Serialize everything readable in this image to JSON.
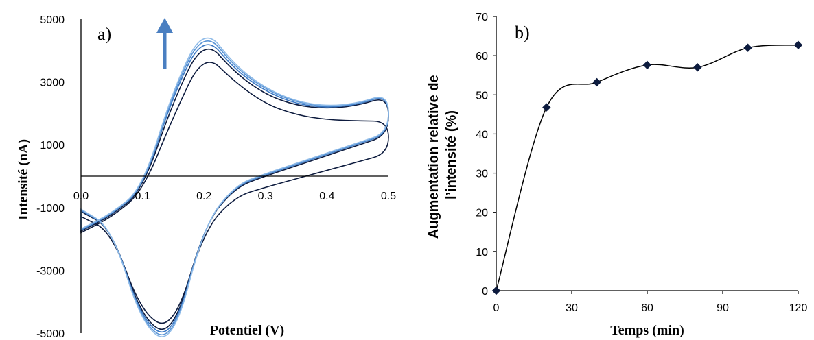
{
  "chart_data": [
    {
      "type": "line",
      "panel_label": "a)",
      "xlabel": "Potentiel (V)",
      "ylabel": "Intensité (nA)",
      "xlim": [
        0.0,
        0.5
      ],
      "ylim": [
        -5000,
        5000
      ],
      "x_ticks": [
        "0.0",
        "0.1",
        "0.2",
        "0.3",
        "0.4",
        "0.5"
      ],
      "y_ticks": [
        "5000",
        "3000",
        "1000",
        "-1000",
        "-3000",
        "-5000"
      ],
      "annotation": "upward arrow indicating increasing current across successive scans",
      "series": [
        {
          "color": "#0d1b3e",
          "x": [
            0.0,
            0.05,
            0.1,
            0.15,
            0.2,
            0.25,
            0.3,
            0.35,
            0.4,
            0.45,
            0.5
          ],
          "y": [
            -1800,
            -1300,
            -500,
            1900,
            3950,
            3000,
            2300,
            1950,
            1800,
            1760,
            1750
          ]
        },
        {
          "color": "#0d1b3e",
          "x": [
            0.0,
            0.05,
            0.1,
            0.15,
            0.2,
            0.25,
            0.3,
            0.35,
            0.4,
            0.45,
            0.5
          ],
          "y": [
            -1750,
            -1250,
            -450,
            2400,
            4400,
            3300,
            2600,
            2250,
            2150,
            2250,
            2550
          ]
        },
        {
          "color": "#3a78c4",
          "x": [
            0.0,
            0.05,
            0.1,
            0.15,
            0.2,
            0.25,
            0.3,
            0.35,
            0.4,
            0.45,
            0.5
          ],
          "y": [
            -1720,
            -1220,
            -420,
            2600,
            4550,
            3400,
            2700,
            2300,
            2180,
            2280,
            2600
          ]
        },
        {
          "color": "#5b95d6",
          "x": [
            0.0,
            0.05,
            0.1,
            0.15,
            0.2,
            0.25,
            0.3,
            0.35,
            0.4,
            0.45,
            0.5
          ],
          "y": [
            -1700,
            -1200,
            -400,
            2700,
            4680,
            3480,
            2760,
            2350,
            2210,
            2300,
            2620
          ]
        },
        {
          "color": "#8fbbe8",
          "x": [
            0.0,
            0.05,
            0.1,
            0.15,
            0.2,
            0.25,
            0.3,
            0.35,
            0.4,
            0.45,
            0.5
          ],
          "y": [
            -1680,
            -1180,
            -380,
            2780,
            4780,
            3540,
            2800,
            2380,
            2230,
            2320,
            2640
          ]
        }
      ]
    },
    {
      "type": "line",
      "panel_label": "b)",
      "xlabel": "Temps (min)",
      "ylabel": "Augmentation relative de l’intensité (%)",
      "xlim": [
        0,
        120
      ],
      "ylim": [
        0,
        70
      ],
      "x_ticks": [
        "0",
        "30",
        "60",
        "90",
        "120"
      ],
      "y_ticks": [
        "0",
        "10",
        "20",
        "30",
        "40",
        "50",
        "60",
        "70"
      ],
      "x": [
        0,
        20,
        40,
        60,
        80,
        100,
        120
      ],
      "y": [
        0,
        46.8,
        53.2,
        57.6,
        57.0,
        62.0,
        62.7
      ],
      "marker": "diamond",
      "color": "#0d1b3e"
    }
  ]
}
